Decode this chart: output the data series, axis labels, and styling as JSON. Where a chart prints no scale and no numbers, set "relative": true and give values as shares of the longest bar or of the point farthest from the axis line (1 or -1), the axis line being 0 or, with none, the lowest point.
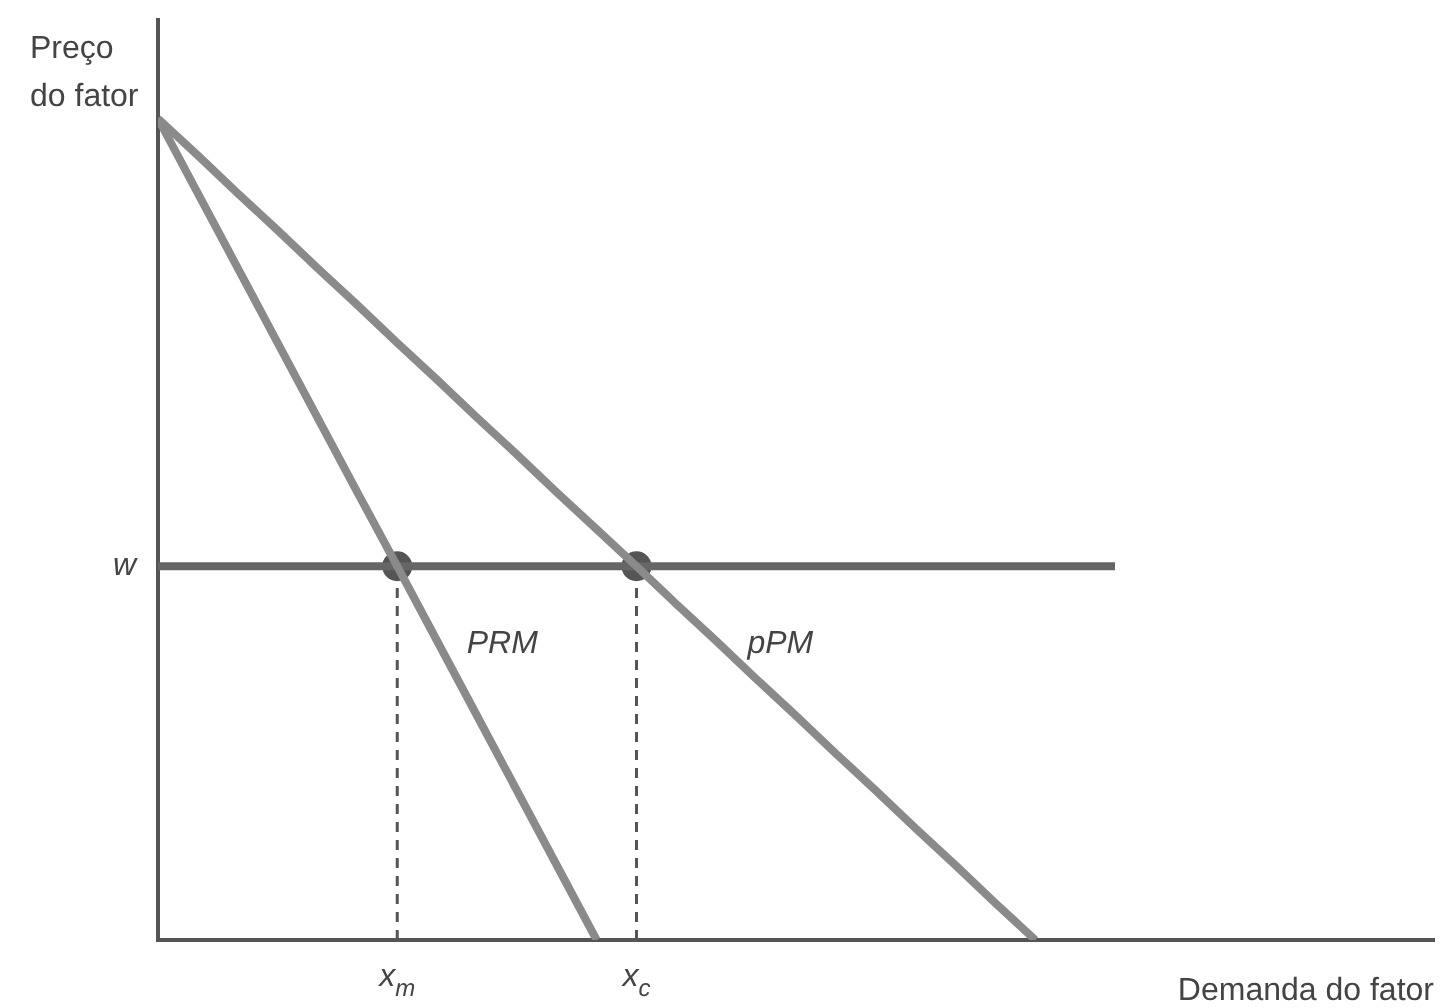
{
  "chart_data": {
    "type": "line",
    "relative": true,
    "xlabel": "Demanda do fator",
    "ylabel": "Preço do fator",
    "categories": [
      null,
      null,
      null,
      null,
      null,
      null,
      "x$_{m}$",
      null,
      null,
      null,
      null,
      null,
      "x$_{c}$",
      null,
      null,
      null,
      null,
      null,
      null,
      null,
      null,
      null,
      null,
      null,
      null,
      null,
      null,
      null,
      null,
      null,
      null,
      null,
      null
    ],
    "legend": false,
    "marker": "none",
    "series": [
      {
        "name": "PRM",
        "color": "#8a8a8a",
        "values": [
          1,
          0.909,
          0.818,
          0.727,
          0.636,
          0.545,
          0.455,
          0.364,
          0.273,
          0.182,
          0.091,
          0,
          null,
          null,
          null,
          null,
          null,
          null,
          null,
          null,
          null,
          null,
          null,
          null,
          null,
          null,
          null,
          null,
          null,
          null,
          null,
          null,
          null
        ]
      },
      {
        "name": "pPM",
        "color": "#8a8a8a",
        "values": [
          1,
          0.955,
          0.909,
          0.864,
          0.818,
          0.773,
          0.727,
          0.682,
          0.636,
          0.591,
          0.545,
          0.5,
          0.455,
          0.409,
          0.364,
          0.318,
          0.273,
          0.227,
          0.182,
          0.136,
          0.091,
          0.045,
          0,
          null,
          null,
          null,
          null,
          null,
          null,
          null,
          null,
          null,
          null
        ]
      },
      {
        "name": "w",
        "color": "#666666",
        "values": [
          0.455,
          0.455,
          0.455,
          0.455,
          0.455,
          0.455,
          0.455,
          0.455,
          0.455,
          0.455,
          0.455,
          0.455,
          0.455,
          0.455,
          0.455,
          0.455,
          0.455,
          0.455,
          0.455,
          0.455,
          0.455,
          0.455,
          0.455,
          0.455,
          0.455,
          null,
          null,
          null,
          null,
          null,
          null,
          null,
          null
        ]
      },
      {
        "color": "#555555",
        "x": [
          "x$_{m}$",
          "x$_{m}$"
        ],
        "values": [
          0,
          0.455
        ],
        "line_style": "dashed"
      },
      {
        "color": "#555555",
        "x": [
          "x$_{c}$",
          "x$_{c}$"
        ],
        "values": [
          0,
          0.455
        ],
        "line_style": "dashed"
      },
      {
        "type": "scatter",
        "color": "#555555",
        "values": [
          null,
          null,
          null,
          null,
          null,
          null,
          0.455,
          null,
          null,
          null,
          null,
          null,
          0.455,
          null,
          null,
          null,
          null,
          null,
          null,
          null,
          null,
          null,
          null,
          null,
          null,
          null,
          null,
          null,
          null,
          null,
          null,
          null,
          null
        ],
        "marker": "circle"
      }
    ]
  }
}
